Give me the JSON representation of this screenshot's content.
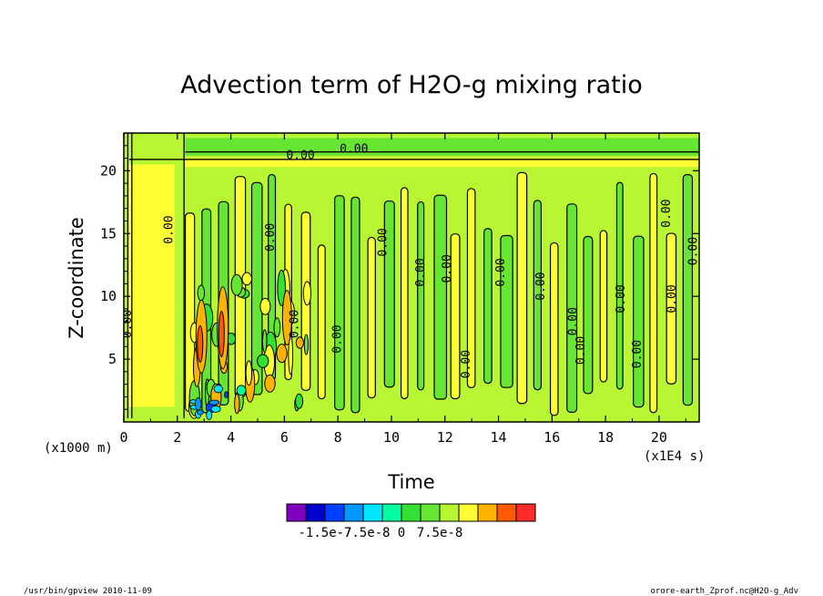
{
  "chart_data": {
    "type": "heatmap",
    "title": "Advection term of H2O-g mixing ratio",
    "xlabel": "Time",
    "ylabel": "Z-coordinate",
    "x_unit": "(x1E4 s)",
    "y_unit": "(x1000 m)",
    "xlim": [
      0,
      21.5
    ],
    "ylim": [
      0,
      23
    ],
    "x_ticks": [
      0,
      2,
      4,
      6,
      8,
      10,
      12,
      14,
      16,
      18,
      20
    ],
    "y_ticks": [
      5,
      10,
      15,
      20
    ],
    "colorbar": {
      "colors": [
        "#7f00bf",
        "#0000cc",
        "#0040ff",
        "#0099ff",
        "#00e5ff",
        "#00ffa0",
        "#33e033",
        "#66e633",
        "#b8f533",
        "#ffff33",
        "#ffb300",
        "#ff5a00",
        "#ff2a2a"
      ],
      "tick_labels": [
        "-1.5e-7",
        "-7.5e-8",
        "0",
        "7.5e-8"
      ],
      "tick_values": [
        -1.5e-07,
        -7.5e-08,
        0,
        7.5e-08
      ]
    },
    "contour_labels": [
      {
        "text": "0.00",
        "x": 0.15,
        "y": 7.8,
        "rotate": -90
      },
      {
        "text": "0.00",
        "x": 1.7,
        "y": 15.3,
        "rotate": -90
      },
      {
        "text": "0.00",
        "x": 6.6,
        "y": 21.2,
        "rotate": 0
      },
      {
        "text": "0.00",
        "x": 8.6,
        "y": 21.7,
        "rotate": 0
      },
      {
        "text": "0.00",
        "x": 5.5,
        "y": 14.7,
        "rotate": -90
      },
      {
        "text": "0.00",
        "x": 6.4,
        "y": 7.8,
        "rotate": -90
      },
      {
        "text": "0.00",
        "x": 8.0,
        "y": 6.6,
        "rotate": -90
      },
      {
        "text": "0.00",
        "x": 9.7,
        "y": 14.3,
        "rotate": -90
      },
      {
        "text": "0.00",
        "x": 11.1,
        "y": 11.9,
        "rotate": -90
      },
      {
        "text": "0.00",
        "x": 12.1,
        "y": 12.2,
        "rotate": -90
      },
      {
        "text": "0.00",
        "x": 12.8,
        "y": 4.6,
        "rotate": -90
      },
      {
        "text": "0.00",
        "x": 14.1,
        "y": 11.9,
        "rotate": -90
      },
      {
        "text": "0.00",
        "x": 15.6,
        "y": 10.8,
        "rotate": -90
      },
      {
        "text": "0.00",
        "x": 16.8,
        "y": 8.0,
        "rotate": -90
      },
      {
        "text": "0.00",
        "x": 17.1,
        "y": 5.7,
        "rotate": -90
      },
      {
        "text": "0.00",
        "x": 18.6,
        "y": 9.8,
        "rotate": -90
      },
      {
        "text": "0.00",
        "x": 19.2,
        "y": 5.4,
        "rotate": -90
      },
      {
        "text": "0.00",
        "x": 20.3,
        "y": 16.6,
        "rotate": -90
      },
      {
        "text": "0.00",
        "x": 20.5,
        "y": 9.8,
        "rotate": -90
      },
      {
        "text": "0.00",
        "x": 21.3,
        "y": 13.6,
        "rotate": -90
      }
    ],
    "grid": false
  },
  "footer": {
    "left": "/usr/bin/gpview  2010-11-09",
    "right": "orore-earth_Zprof.nc@H2O-g_Adv"
  }
}
